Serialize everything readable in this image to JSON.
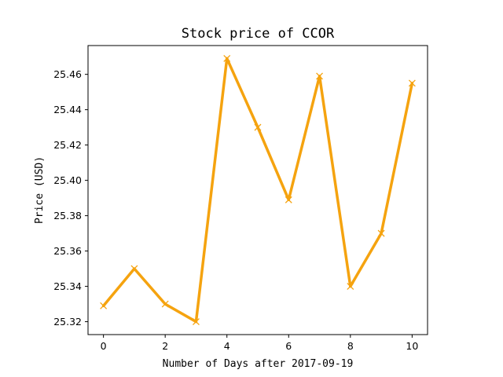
{
  "chart_data": {
    "type": "line",
    "title": "Stock price of CCOR",
    "xlabel": "Number of Days after 2017-09-19",
    "ylabel": "Price (USD)",
    "x": [
      0,
      1,
      2,
      3,
      4,
      5,
      6,
      7,
      8,
      9,
      10
    ],
    "series": [
      {
        "values": [
          25.329,
          25.35,
          25.33,
          25.32,
          25.469,
          25.43,
          25.389,
          25.459,
          25.34,
          25.37,
          25.455
        ],
        "color": "#f5a30f",
        "marker": "x"
      }
    ],
    "xlim": [
      -0.5,
      10.5
    ],
    "ylim": [
      25.3127,
      25.4763
    ],
    "xticks": [
      0,
      2,
      4,
      6,
      8,
      10
    ],
    "xtick_labels": [
      "0",
      "2",
      "4",
      "6",
      "8",
      "10"
    ],
    "yticks": [
      25.32,
      25.34,
      25.36,
      25.38,
      25.4,
      25.42,
      25.44,
      25.46
    ],
    "ytick_labels": [
      "25.32",
      "25.34",
      "25.36",
      "25.38",
      "25.40",
      "25.42",
      "25.44",
      "25.46"
    ],
    "grid": false,
    "legend": "none"
  }
}
